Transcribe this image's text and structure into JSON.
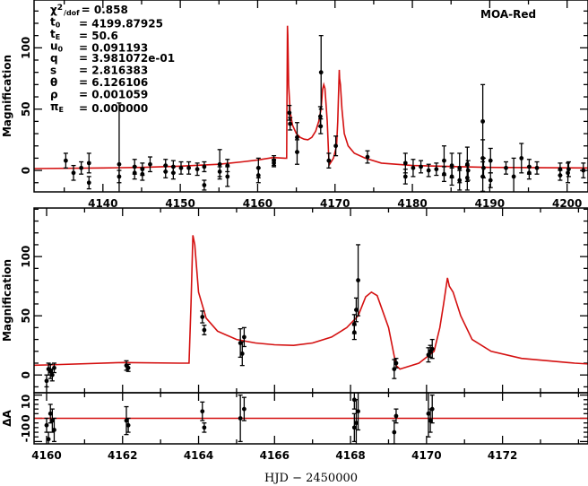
{
  "chart_data": [
    {
      "type": "scatter",
      "panel": "overview",
      "title": "",
      "legend": "MOA-Red",
      "xlabel": "",
      "ylabel": "Magnification",
      "xlim": [
        4131.1,
        4202.7
      ],
      "ylim": [
        -17.5,
        139
      ],
      "xticks": [
        4140,
        4150,
        4160,
        4170,
        4180,
        4190,
        4200
      ],
      "yticks": [
        0,
        50,
        100
      ],
      "parameters": [
        {
          "sym": "χ",
          "sup": "2",
          "sub": "/dof",
          "value": "= 0.858"
        },
        {
          "sym": "t",
          "sub": "0",
          "value": "= 4199.87925"
        },
        {
          "sym": "t",
          "sub": "E",
          "value": "= 50.6"
        },
        {
          "sym": "u",
          "sub": "0",
          "value": "= 0.091193"
        },
        {
          "sym": "q",
          "sub": "",
          "value": "= 3.981072e-01"
        },
        {
          "sym": "s",
          "sub": "",
          "value": "= 2.816383"
        },
        {
          "sym": "θ",
          "sub": "",
          "value": "= 6.126106"
        },
        {
          "sym": "ρ",
          "sub": "",
          "value": "= 0.001059"
        },
        {
          "sym": "π",
          "sub": "E",
          "value": "= 0.000000"
        }
      ],
      "points": [
        [
          4135.2,
          8,
          6
        ],
        [
          4136.2,
          -2,
          6
        ],
        [
          4137.2,
          2,
          5
        ],
        [
          4138.2,
          6,
          8
        ],
        [
          4138.2,
          -10,
          5
        ],
        [
          4142.1,
          5,
          50
        ],
        [
          4142.1,
          -5,
          5
        ],
        [
          4144.1,
          3,
          6
        ],
        [
          4144.1,
          -2,
          5
        ],
        [
          4145.1,
          1,
          5
        ],
        [
          4145.1,
          -3,
          5
        ],
        [
          4146.1,
          5,
          6
        ],
        [
          4148.1,
          4,
          5
        ],
        [
          4148.1,
          -1,
          5
        ],
        [
          4149.1,
          3,
          5
        ],
        [
          4149.1,
          -2,
          5
        ],
        [
          4150.1,
          2,
          5
        ],
        [
          4151.1,
          2,
          5
        ],
        [
          4152.2,
          1,
          5
        ],
        [
          4153.1,
          3,
          4
        ],
        [
          4153.1,
          -12,
          4
        ],
        [
          4155.1,
          5,
          12
        ],
        [
          4155.1,
          -1,
          4
        ],
        [
          4156.1,
          4,
          5
        ],
        [
          4156.1,
          -5,
          8
        ],
        [
          4160.1,
          2,
          8
        ],
        [
          4160.1,
          -4,
          6
        ],
        [
          4162.1,
          8,
          4
        ],
        [
          4162.1,
          6,
          3
        ],
        [
          4164.1,
          47,
          6
        ],
        [
          4164.2,
          38,
          5
        ],
        [
          4165.1,
          27,
          12
        ],
        [
          4165.1,
          15,
          10
        ],
        [
          4168.1,
          44,
          8
        ],
        [
          4168.2,
          80,
          30
        ],
        [
          4168.15,
          36,
          6
        ],
        [
          4169.2,
          8,
          6
        ],
        [
          4170.1,
          20,
          8
        ],
        [
          4174.2,
          11,
          5
        ],
        [
          4179.1,
          6,
          8
        ],
        [
          4179.1,
          -5,
          6
        ],
        [
          4180.1,
          2,
          7
        ],
        [
          4181.1,
          3,
          5
        ],
        [
          4182.1,
          0,
          5
        ],
        [
          4183.1,
          1,
          5
        ],
        [
          4184.1,
          8,
          12
        ],
        [
          4184.1,
          -3,
          6
        ],
        [
          4185.1,
          4,
          10
        ],
        [
          4185.1,
          -5,
          7
        ],
        [
          4186.1,
          2,
          12
        ],
        [
          4186.1,
          -8,
          8
        ],
        [
          4187.1,
          5,
          14
        ],
        [
          4187.1,
          -6,
          10
        ],
        [
          4187.2,
          0,
          8
        ],
        [
          4189.1,
          10,
          15
        ],
        [
          4189.1,
          40,
          30
        ],
        [
          4189.1,
          -5,
          12
        ],
        [
          4189.2,
          2,
          8
        ],
        [
          4190.1,
          8,
          10
        ],
        [
          4190.1,
          -8,
          6
        ],
        [
          4192.1,
          2,
          5
        ],
        [
          4193.1,
          -5,
          15
        ],
        [
          4194.1,
          10,
          12
        ],
        [
          4195.1,
          3,
          6
        ],
        [
          4195.1,
          -2,
          5
        ],
        [
          4196.1,
          2,
          5
        ],
        [
          4199.1,
          1,
          5
        ],
        [
          4199.1,
          -4,
          4
        ],
        [
          4200.1,
          -2,
          8
        ],
        [
          4200.2,
          1,
          6
        ],
        [
          4202.1,
          0,
          6
        ]
      ]
    },
    {
      "type": "scatter",
      "panel": "zoom",
      "xlabel": "",
      "ylabel": "Magnification",
      "xlim": [
        4159.67,
        4174.25
      ],
      "ylim": [
        -15,
        141
      ],
      "xticks": [
        4160,
        4162,
        4164,
        4166,
        4168,
        4170,
        4172
      ],
      "yticks": [
        0,
        50,
        100
      ],
      "points": [
        [
          4160.0,
          -5,
          5
        ],
        [
          4160.05,
          5,
          5
        ],
        [
          4160.1,
          3,
          6
        ],
        [
          4160.15,
          0,
          5
        ],
        [
          4160.2,
          6,
          4
        ],
        [
          4162.1,
          8,
          4
        ],
        [
          4162.15,
          6,
          3
        ],
        [
          4164.1,
          49,
          5
        ],
        [
          4164.15,
          38,
          4
        ],
        [
          4165.1,
          27,
          12
        ],
        [
          4165.2,
          32,
          8
        ],
        [
          4165.15,
          18,
          10
        ],
        [
          4168.1,
          43,
          8
        ],
        [
          4168.15,
          55,
          10
        ],
        [
          4168.1,
          36,
          6
        ],
        [
          4168.2,
          80,
          30
        ],
        [
          4169.15,
          5,
          8
        ],
        [
          4169.2,
          10,
          4
        ],
        [
          4170.05,
          17,
          6
        ],
        [
          4170.1,
          20,
          5
        ],
        [
          4170.15,
          22,
          8
        ]
      ]
    },
    {
      "type": "scatter",
      "panel": "residuals",
      "xlabel": "HJD − 2450000",
      "ylabel": "ΔA",
      "xlim": [
        4159.67,
        4174.25
      ],
      "ylim": [
        -11,
        11
      ],
      "xticks": [
        4160,
        4162,
        4164,
        4166,
        4168,
        4170,
        4172
      ],
      "yticks": [
        -10,
        0,
        10
      ],
      "points": [
        [
          4160.0,
          -3,
          3
        ],
        [
          4160.05,
          -9,
          3
        ],
        [
          4160.1,
          2,
          4
        ],
        [
          4160.15,
          -1,
          5
        ],
        [
          4160.2,
          -5,
          5
        ],
        [
          4162.1,
          -1,
          6
        ],
        [
          4162.15,
          -3,
          3
        ],
        [
          4164.1,
          3,
          4
        ],
        [
          4164.15,
          -4,
          2
        ],
        [
          4165.1,
          0,
          10
        ],
        [
          4165.2,
          4,
          5
        ],
        [
          4168.1,
          8,
          4
        ],
        [
          4168.15,
          -2,
          10
        ],
        [
          4168.2,
          3,
          8
        ],
        [
          4168.1,
          -4,
          6
        ],
        [
          4169.15,
          -6,
          5
        ],
        [
          4169.2,
          1,
          3
        ],
        [
          4170.05,
          2,
          10
        ],
        [
          4170.1,
          -1,
          5
        ],
        [
          4170.15,
          4,
          6
        ]
      ]
    }
  ],
  "model_curve": {
    "color": "#d41010",
    "points": [
      [
        4131,
        1.5
      ],
      [
        4140,
        2
      ],
      [
        4145,
        2.5
      ],
      [
        4150,
        3.5
      ],
      [
        4155,
        5
      ],
      [
        4158,
        7
      ],
      [
        4160,
        8.5
      ],
      [
        4162,
        10.5
      ],
      [
        4163.5,
        10
      ],
      [
        4163.75,
        10
      ],
      [
        4163.8,
        60
      ],
      [
        4163.85,
        118
      ],
      [
        4163.9,
        110
      ],
      [
        4164.0,
        70
      ],
      [
        4164.2,
        48
      ],
      [
        4164.5,
        37
      ],
      [
        4165,
        30
      ],
      [
        4165.5,
        27
      ],
      [
        4166,
        25.5
      ],
      [
        4166.5,
        25
      ],
      [
        4167,
        27
      ],
      [
        4167.5,
        32
      ],
      [
        4167.9,
        40
      ],
      [
        4168.2,
        50
      ],
      [
        4168.4,
        66
      ],
      [
        4168.55,
        70
      ],
      [
        4168.7,
        67
      ],
      [
        4169.0,
        40
      ],
      [
        4169.2,
        8
      ],
      [
        4169.3,
        5
      ],
      [
        4169.8,
        10
      ],
      [
        4170.2,
        20
      ],
      [
        4170.35,
        40
      ],
      [
        4170.45,
        60
      ],
      [
        4170.55,
        82
      ],
      [
        4170.6,
        75
      ],
      [
        4170.7,
        70
      ],
      [
        4170.9,
        50
      ],
      [
        4171.2,
        30
      ],
      [
        4171.7,
        20
      ],
      [
        4172.5,
        14
      ],
      [
        4173.9,
        10
      ],
      [
        4176,
        6
      ],
      [
        4180,
        4
      ],
      [
        4190,
        2.5
      ],
      [
        4203,
        2
      ]
    ]
  }
}
